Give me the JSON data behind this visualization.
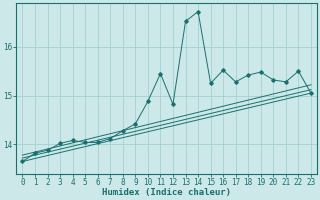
{
  "xlabel": "Humidex (Indice chaleur)",
  "background_color": "#cce8e8",
  "grid_color": "#9ecece",
  "line_color": "#1a7070",
  "x_values": [
    0,
    1,
    2,
    3,
    4,
    5,
    6,
    7,
    8,
    9,
    10,
    11,
    12,
    13,
    14,
    15,
    16,
    17,
    18,
    19,
    20,
    21,
    22,
    23
  ],
  "series1": [
    13.65,
    13.82,
    13.88,
    14.02,
    14.08,
    14.04,
    14.04,
    14.12,
    14.28,
    14.42,
    14.88,
    15.45,
    14.82,
    16.52,
    16.72,
    15.25,
    15.52,
    15.28,
    15.42,
    15.48,
    15.32,
    15.28,
    15.5,
    15.05
  ],
  "reg_lines": [
    [
      0,
      13.65,
      23,
      15.05
    ],
    [
      0,
      13.72,
      23,
      15.12
    ],
    [
      0,
      13.78,
      23,
      15.22
    ]
  ],
  "yticks": [
    14,
    15,
    16
  ],
  "ylim": [
    13.4,
    16.9
  ],
  "xlim": [
    -0.5,
    23.5
  ],
  "xticks": [
    0,
    1,
    2,
    3,
    4,
    5,
    6,
    7,
    8,
    9,
    10,
    11,
    12,
    13,
    14,
    15,
    16,
    17,
    18,
    19,
    20,
    21,
    22,
    23
  ],
  "tick_fontsize": 5.5,
  "label_fontsize": 6.5
}
